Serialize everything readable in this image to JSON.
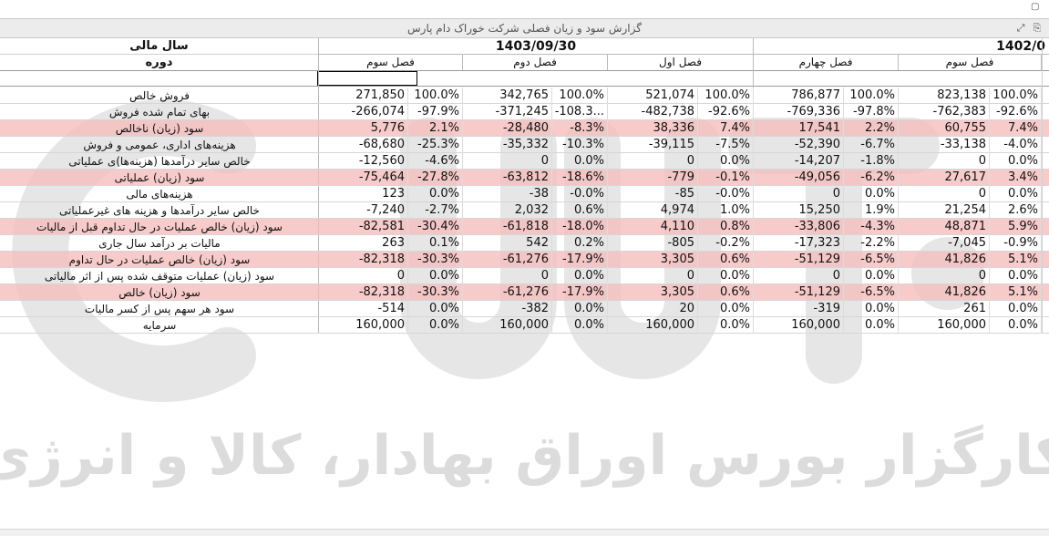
{
  "window": {
    "title": "گزارش سود و زیان فصلی شرکت خوراک دام پارس",
    "icons": [
      "expand-icon",
      "export-icon"
    ]
  },
  "header": {
    "fiscal_year_label": "سال مالی",
    "period_label": "دوره",
    "date_group_1": "1403/09/30",
    "date_group_2": "1402/0",
    "quarters": [
      "فصل سوم",
      "فصل دوم",
      "فصل اول",
      "فصل چهارم",
      "فصل سوم"
    ]
  },
  "rows": [
    {
      "label": "فروش خالص",
      "hl": false,
      "values": [
        "271,850",
        "100.0%",
        "342,765",
        "100.0%",
        "521,074",
        "100.0%",
        "786,877",
        "100.0%",
        "823,138",
        "100.0%"
      ]
    },
    {
      "label": "بهای تمام شده فروش",
      "hl": false,
      "values": [
        "-266,074",
        "-97.9%",
        "-371,245",
        "-108.3...",
        "-482,738",
        "-92.6%",
        "-769,336",
        "-97.8%",
        "-762,383",
        "-92.6%"
      ]
    },
    {
      "label": "سود (زیان) ناخالص",
      "hl": true,
      "values": [
        "5,776",
        "2.1%",
        "-28,480",
        "-8.3%",
        "38,336",
        "7.4%",
        "17,541",
        "2.2%",
        "60,755",
        "7.4%"
      ]
    },
    {
      "label": "هزینه‌های اداری، عمومی و فروش",
      "hl": false,
      "values": [
        "-68,680",
        "-25.3%",
        "-35,332",
        "-10.3%",
        "-39,115",
        "-7.5%",
        "-52,390",
        "-6.7%",
        "-33,138",
        "-4.0%"
      ]
    },
    {
      "label": "خالص سایر درآمدها (هزینه‌ها)ی عملیاتی",
      "hl": false,
      "values": [
        "-12,560",
        "-4.6%",
        "0",
        "0.0%",
        "0",
        "0.0%",
        "-14,207",
        "-1.8%",
        "0",
        "0.0%"
      ]
    },
    {
      "label": "سود (زیان) عملیاتی",
      "hl": true,
      "values": [
        "-75,464",
        "-27.8%",
        "-63,812",
        "-18.6%",
        "-779",
        "-0.1%",
        "-49,056",
        "-6.2%",
        "27,617",
        "3.4%"
      ]
    },
    {
      "label": "هزینه‌های مالی",
      "hl": false,
      "values": [
        "123",
        "0.0%",
        "-38",
        "-0.0%",
        "-85",
        "-0.0%",
        "0",
        "0.0%",
        "0",
        "0.0%"
      ]
    },
    {
      "label": "خالص سایر درآمدها و هزینه های غیرعملیاتی",
      "hl": false,
      "values": [
        "-7,240",
        "-2.7%",
        "2,032",
        "0.6%",
        "4,974",
        "1.0%",
        "15,250",
        "1.9%",
        "21,254",
        "2.6%"
      ]
    },
    {
      "label": "سود (زیان) خالص عملیات در حال تداوم قبل از مالیات",
      "hl": true,
      "values": [
        "-82,581",
        "-30.4%",
        "-61,818",
        "-18.0%",
        "4,110",
        "0.8%",
        "-33,806",
        "-4.3%",
        "48,871",
        "5.9%"
      ]
    },
    {
      "label": "مالیات بر درآمد سال جاری",
      "hl": false,
      "values": [
        "263",
        "0.1%",
        "542",
        "0.2%",
        "-805",
        "-0.2%",
        "-17,323",
        "-2.2%",
        "-7,045",
        "-0.9%"
      ]
    },
    {
      "label": "سود (زیان) خالص عملیات در حال تداوم",
      "hl": true,
      "values": [
        "-82,318",
        "-30.3%",
        "-61,276",
        "-17.9%",
        "3,305",
        "0.6%",
        "-51,129",
        "-6.5%",
        "41,826",
        "5.1%"
      ]
    },
    {
      "label": "سود (زیان) عملیات متوقف شده پس از اثر مالیاتی",
      "hl": false,
      "values": [
        "0",
        "0.0%",
        "0",
        "0.0%",
        "0",
        "0.0%",
        "0",
        "0.0%",
        "0",
        "0.0%"
      ]
    },
    {
      "label": "سود (زیان) خالص",
      "hl": true,
      "values": [
        "-82,318",
        "-30.3%",
        "-61,276",
        "-17.9%",
        "3,305",
        "0.6%",
        "-51,129",
        "-6.5%",
        "41,826",
        "5.1%"
      ]
    },
    {
      "label": "سود هر سهم پس از کسر مالیات",
      "hl": false,
      "values": [
        "-514",
        "0.0%",
        "-382",
        "0.0%",
        "20",
        "0.0%",
        "-319",
        "0.0%",
        "261",
        "0.0%"
      ]
    },
    {
      "label": "سرمایه",
      "hl": false,
      "values": [
        "160,000",
        "0.0%",
        "160,000",
        "0.0%",
        "160,000",
        "0.0%",
        "160,000",
        "0.0%",
        "160,000",
        "0.0%"
      ]
    }
  ],
  "watermark": {
    "text": "کارگزار بورس اوراق بهادار، کالا و انرژی",
    "logo_color": "#e3e3e3",
    "text_color": "#dcdcdc"
  },
  "colors": {
    "highlight_row": "#f6bcbc",
    "grid_line": "#d6d6d6",
    "titlebar": "#ececec"
  }
}
